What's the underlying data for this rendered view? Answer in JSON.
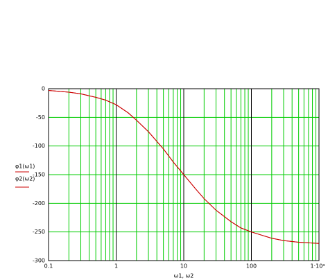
{
  "chart_data": {
    "type": "line",
    "xlabel": "ω1, ω2",
    "x": [
      0.1,
      0.2,
      0.3,
      0.5,
      0.7,
      1,
      1.5,
      2,
      3,
      5,
      7,
      10,
      15,
      20,
      30,
      50,
      70,
      100,
      200,
      300,
      500,
      1000
    ],
    "series": [
      {
        "name": "φ1(ω1)",
        "color": "#cc0000",
        "values": [
          -3,
          -6,
          -9,
          -15,
          -20,
          -28,
          -42,
          -55,
          -75,
          -105,
          -128,
          -150,
          -175,
          -192,
          -212,
          -232,
          -243,
          -250,
          -261,
          -265,
          -268,
          -270
        ]
      },
      {
        "name": "φ2(ω2)",
        "color": "#cc0000",
        "values": [
          -3,
          -6,
          -9,
          -15,
          -20,
          -28,
          -42,
          -55,
          -75,
          -105,
          -128,
          -150,
          -175,
          -192,
          -212,
          -232,
          -243,
          -250,
          -261,
          -265,
          -268,
          -270
        ]
      }
    ],
    "xlog": true,
    "xlim": [
      0.1,
      1000
    ],
    "xticks": [
      0.1,
      1,
      10,
      100,
      {
        "value": 1000,
        "label": "1·10³"
      }
    ],
    "xminorticks": [
      0.2,
      0.3,
      0.4,
      0.5,
      0.6,
      0.7,
      0.8,
      0.9,
      2,
      3,
      4,
      5,
      6,
      7,
      8,
      9,
      20,
      30,
      40,
      50,
      60,
      70,
      80,
      90,
      200,
      300,
      400,
      500,
      600,
      700,
      800,
      900
    ],
    "ylim": [
      -300,
      0
    ],
    "yticks": [
      0,
      -50,
      -100,
      -150,
      -200,
      -250,
      -300
    ],
    "grid": true,
    "grid_color": "#00cc00"
  }
}
